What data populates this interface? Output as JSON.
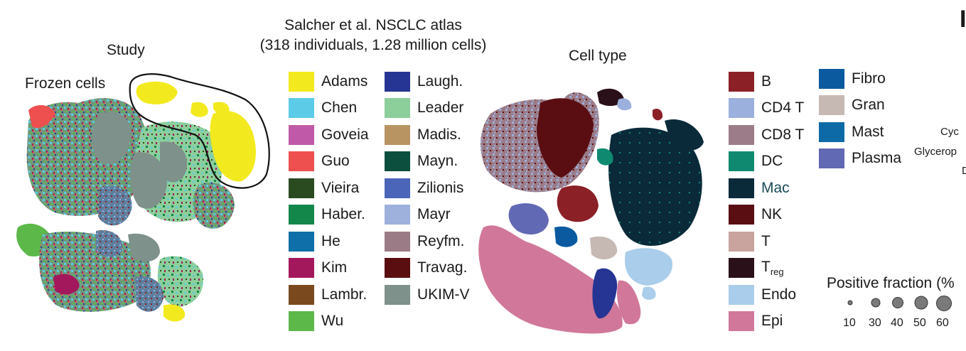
{
  "study_umap": {
    "title": "Study",
    "subtitle": "Frozen cells"
  },
  "atlas": {
    "title_line1": "Salcher et al. NSCLC atlas",
    "title_line2": "(318 individuals, 1.28 million cells)"
  },
  "study_legend": {
    "col1": [
      {
        "label": "Adams",
        "color": "#f2ea1e"
      },
      {
        "label": "Chen",
        "color": "#5ccbe8"
      },
      {
        "label": "Goveia",
        "color": "#c05aa8"
      },
      {
        "label": "Guo",
        "color": "#ee4f4f"
      },
      {
        "label": "Vieira",
        "color": "#2a4a20"
      },
      {
        "label": "Haber.",
        "color": "#13874a"
      },
      {
        "label": "He",
        "color": "#0f6fa8"
      },
      {
        "label": "Kim",
        "color": "#a3185c"
      },
      {
        "label": "Lambr.",
        "color": "#7a4a1e"
      },
      {
        "label": "Wu",
        "color": "#5db84a"
      }
    ],
    "col2": [
      {
        "label": "Laugh.",
        "color": "#263593"
      },
      {
        "label": "Leader",
        "color": "#8dcf9b"
      },
      {
        "label": "Madis.",
        "color": "#b89463"
      },
      {
        "label": "Mayn.",
        "color": "#0d4f3f"
      },
      {
        "label": "Zilionis",
        "color": "#4b66b8"
      },
      {
        "label": "Mayr",
        "color": "#9db1dc"
      },
      {
        "label": "Reyfm.",
        "color": "#9b7c86"
      },
      {
        "label": "Travag.",
        "color": "#5a0e10"
      },
      {
        "label": "UKIM-V",
        "color": "#7e918a"
      }
    ]
  },
  "celltype_umap": {
    "title": "Cell type"
  },
  "celltype_legend": {
    "col1": [
      {
        "label": "B",
        "color": "#8b2026"
      },
      {
        "label": "CD4 T",
        "color": "#9bb0dc"
      },
      {
        "label": "CD8 T",
        "color": "#9b7c88"
      },
      {
        "label": "DC",
        "color": "#0f8a70"
      },
      {
        "label": "Mac",
        "color": "#0a2a3a"
      },
      {
        "label": "NK",
        "color": "#5a0e12"
      },
      {
        "label": "T",
        "color": "#c9a39e"
      },
      {
        "label": "T",
        "sub": "reg",
        "color": "#2a1018"
      },
      {
        "label": "Endo",
        "color": "#a9cdea"
      },
      {
        "label": "Epi",
        "color": "#d1789a"
      }
    ],
    "col2": [
      {
        "label": "Fibro",
        "color": "#0b5aa0"
      },
      {
        "label": "Gran",
        "color": "#c6b9b3"
      },
      {
        "label": "Mast",
        "color": "#0d6aa6"
      },
      {
        "label": "Plasma",
        "color": "#6168b4"
      }
    ]
  },
  "dotplot": {
    "title": "Positive fraction (%",
    "sizes": [
      10,
      30,
      40,
      50,
      60
    ],
    "row_labels": [
      "Cyc",
      "Glycerop",
      "D"
    ],
    "panel_letter": "I"
  }
}
